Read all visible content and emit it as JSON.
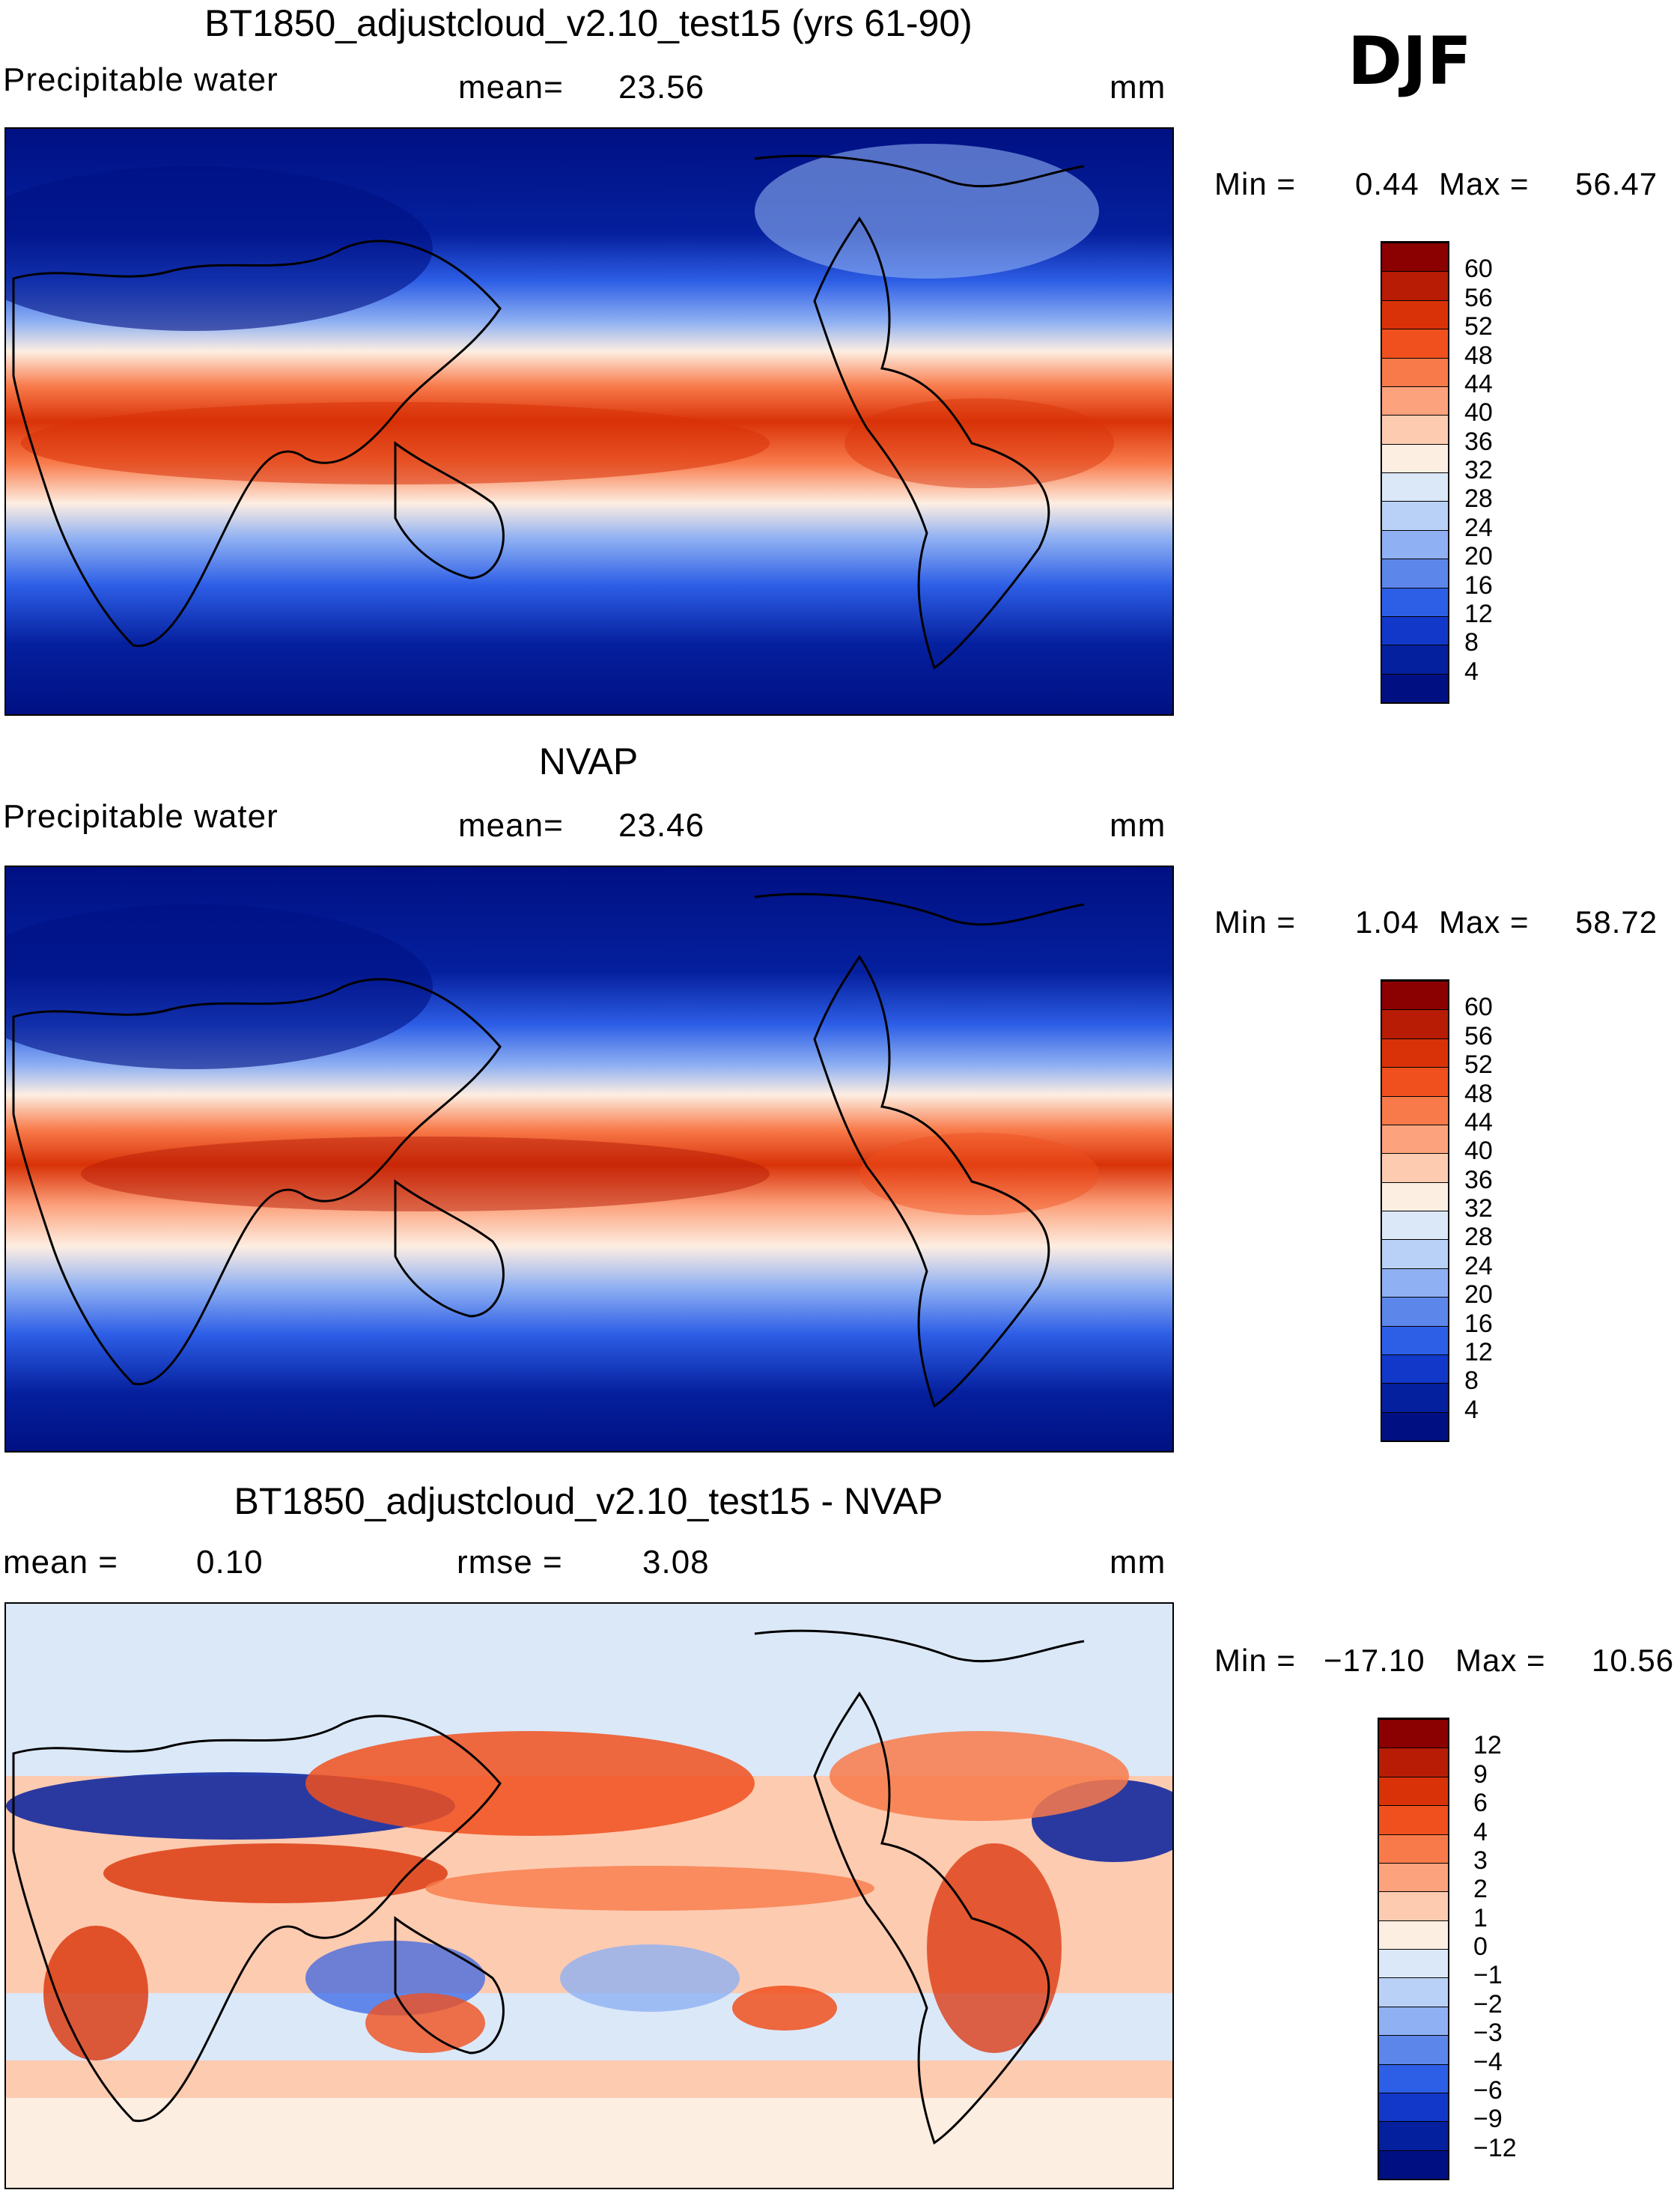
{
  "season": "DJF",
  "panels": [
    {
      "title": "BT1850_adjustcloud_v2.10_test15 (yrs 61-90)",
      "left_label": "Precipitable water",
      "center_label": "mean=",
      "center_value": "23.56",
      "units": "mm",
      "min_label": "Min =",
      "min_value": "0.44",
      "max_label": "Max =",
      "max_value": "56.47"
    },
    {
      "title": "NVAP",
      "left_label": "Precipitable water",
      "center_label": "mean=",
      "center_value": "23.46",
      "units": "mm",
      "min_label": "Min =",
      "min_value": "1.04",
      "max_label": "Max =",
      "max_value": "58.72"
    },
    {
      "title": "BT1850_adjustcloud_v2.10_test15 - NVAP",
      "left_label": "mean =",
      "left_value": "0.10",
      "center_label": "rmse =",
      "center_value": "3.08",
      "units": "mm",
      "min_label": "Min =",
      "min_value": "−17.10",
      "max_label": "Max =",
      "max_value": "10.56"
    }
  ],
  "colorbars": {
    "field": {
      "labels": [
        "60",
        "56",
        "52",
        "48",
        "44",
        "40",
        "36",
        "32",
        "28",
        "24",
        "20",
        "16",
        "12",
        "8",
        "4"
      ],
      "colors": [
        "#8b0000",
        "#b81c05",
        "#d93208",
        "#f0501e",
        "#f87a4a",
        "#fca27d",
        "#fdcbb0",
        "#fdeee2",
        "#dbe8f8",
        "#b9d1f6",
        "#8fb0f2",
        "#5d86eb",
        "#2d5ee6",
        "#1238c9",
        "#05209e",
        "#001083"
      ]
    },
    "diff": {
      "labels": [
        "12",
        "9",
        "6",
        "4",
        "3",
        "2",
        "1",
        "0",
        "−1",
        "−2",
        "−3",
        "−4",
        "−6",
        "−9",
        "−12"
      ],
      "colors": [
        "#8b0000",
        "#b81c05",
        "#d93208",
        "#f0501e",
        "#f87a4a",
        "#fca27d",
        "#fdcbb0",
        "#fdeee2",
        "#dbe8f8",
        "#b9d1f6",
        "#8fb0f2",
        "#5d86eb",
        "#2d5ee6",
        "#1238c9",
        "#05209e",
        "#001083"
      ]
    }
  }
}
